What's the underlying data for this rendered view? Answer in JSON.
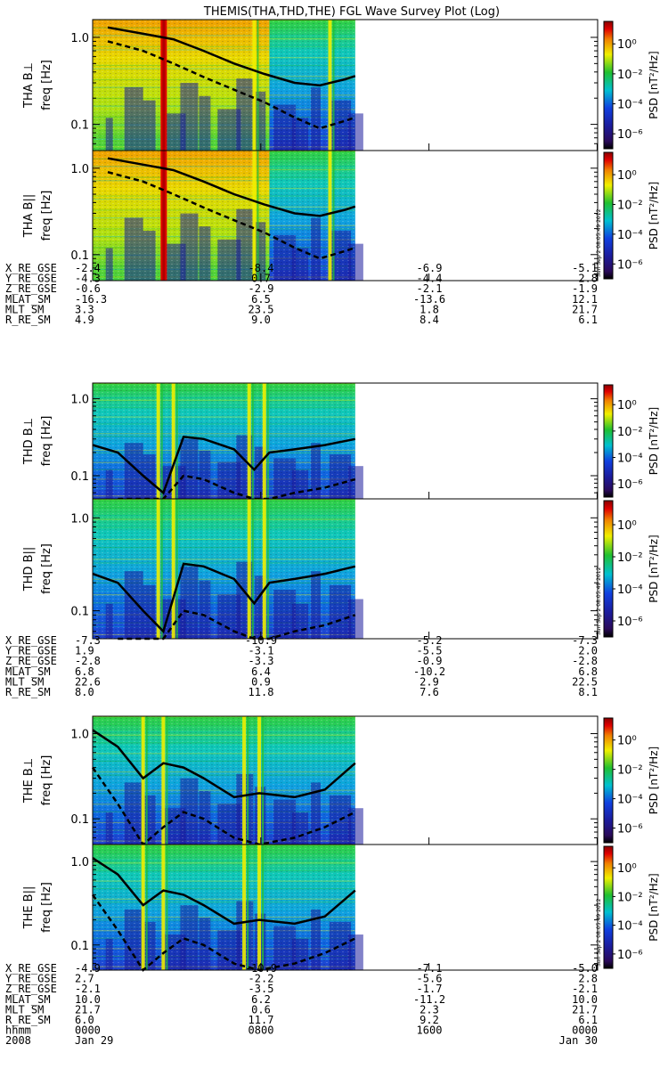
{
  "title": "THEMIS(THA,THD,THE) FGL Wave Survey Plot (Log)",
  "timestamp": "Sun Sep  2 08:05:49 2012",
  "colorbar_label": "PSD [nT²/Hz]",
  "colorbar_ticks": [
    "10⁰",
    "10⁻²",
    "10⁻⁴",
    "10⁻⁶"
  ],
  "colorbar_exponents": [
    0,
    -2,
    -4,
    -6
  ],
  "colors": {
    "dark_red": "#b00000",
    "red": "#e00000",
    "yellow": "#f0f000",
    "green": "#20c030",
    "cyan": "#00c0d0",
    "blue": "#1040e0",
    "dark_blue": "#1c1c9c",
    "black": "#000000",
    "grid_line": "#000000"
  },
  "chart_data": [
    {
      "type": "heatmap",
      "panel": "THA B⊥",
      "ylabel_probe": "THA B⊥",
      "ylabel": "freq [Hz]",
      "yscale": "log",
      "ylim": [
        0.05,
        1.6
      ],
      "yticks": [
        "1.0",
        "0.1"
      ],
      "data_end_fraction": 0.52,
      "bright_region_end_fraction": 0.35,
      "vertical_bursts": [
        0.14,
        0.32,
        0.47
      ],
      "solid_line": [
        [
          0.03,
          1.3
        ],
        [
          0.1,
          1.1
        ],
        [
          0.16,
          0.95
        ],
        [
          0.22,
          0.7
        ],
        [
          0.28,
          0.5
        ],
        [
          0.34,
          0.38
        ],
        [
          0.4,
          0.3
        ],
        [
          0.45,
          0.28
        ],
        [
          0.5,
          0.33
        ],
        [
          0.52,
          0.36
        ]
      ],
      "dashed_line": [
        [
          0.03,
          0.9
        ],
        [
          0.1,
          0.7
        ],
        [
          0.16,
          0.5
        ],
        [
          0.22,
          0.35
        ],
        [
          0.28,
          0.25
        ],
        [
          0.34,
          0.18
        ],
        [
          0.4,
          0.12
        ],
        [
          0.45,
          0.09
        ],
        [
          0.5,
          0.11
        ],
        [
          0.52,
          0.12
        ]
      ]
    },
    {
      "type": "heatmap",
      "panel": "THA B∥",
      "ylabel_probe": "THA B||",
      "ylabel": "freq [Hz]",
      "yscale": "log",
      "ylim": [
        0.05,
        1.6
      ],
      "yticks": [
        "1.0",
        "0.1"
      ],
      "data_end_fraction": 0.52,
      "bright_region_end_fraction": 0.35,
      "vertical_bursts": [
        0.14,
        0.32,
        0.47
      ],
      "solid_line": [
        [
          0.03,
          1.3
        ],
        [
          0.1,
          1.1
        ],
        [
          0.16,
          0.95
        ],
        [
          0.22,
          0.7
        ],
        [
          0.28,
          0.5
        ],
        [
          0.34,
          0.38
        ],
        [
          0.4,
          0.3
        ],
        [
          0.45,
          0.28
        ],
        [
          0.5,
          0.33
        ],
        [
          0.52,
          0.36
        ]
      ],
      "dashed_line": [
        [
          0.03,
          0.9
        ],
        [
          0.1,
          0.7
        ],
        [
          0.16,
          0.5
        ],
        [
          0.22,
          0.35
        ],
        [
          0.28,
          0.25
        ],
        [
          0.34,
          0.18
        ],
        [
          0.4,
          0.12
        ],
        [
          0.45,
          0.09
        ],
        [
          0.5,
          0.11
        ],
        [
          0.52,
          0.12
        ]
      ]
    },
    {
      "type": "heatmap",
      "panel": "THD B⊥",
      "ylabel_probe": "THD B⊥",
      "ylabel": "freq [Hz]",
      "yscale": "log",
      "ylim": [
        0.05,
        1.6
      ],
      "yticks": [
        "1.0",
        "0.1"
      ],
      "data_end_fraction": 0.52,
      "bright_region_end_fraction": 0.0,
      "vertical_bursts": [
        0.13,
        0.16,
        0.31,
        0.34
      ],
      "solid_line": [
        [
          0.0,
          0.25
        ],
        [
          0.05,
          0.2
        ],
        [
          0.1,
          0.1
        ],
        [
          0.14,
          0.06
        ],
        [
          0.18,
          0.32
        ],
        [
          0.22,
          0.3
        ],
        [
          0.28,
          0.22
        ],
        [
          0.32,
          0.12
        ],
        [
          0.35,
          0.2
        ],
        [
          0.4,
          0.22
        ],
        [
          0.46,
          0.25
        ],
        [
          0.52,
          0.3
        ]
      ],
      "dashed_line": [
        [
          0.05,
          0.05
        ],
        [
          0.1,
          0.04
        ],
        [
          0.14,
          0.05
        ],
        [
          0.18,
          0.1
        ],
        [
          0.22,
          0.09
        ],
        [
          0.28,
          0.06
        ],
        [
          0.32,
          0.04
        ],
        [
          0.35,
          0.05
        ],
        [
          0.4,
          0.06
        ],
        [
          0.46,
          0.07
        ],
        [
          0.52,
          0.09
        ]
      ]
    },
    {
      "type": "heatmap",
      "panel": "THD B∥",
      "ylabel_probe": "THD B||",
      "ylabel": "freq [Hz]",
      "yscale": "log",
      "ylim": [
        0.05,
        1.6
      ],
      "yticks": [
        "1.0",
        "0.1"
      ],
      "data_end_fraction": 0.52,
      "bright_region_end_fraction": 0.0,
      "vertical_bursts": [
        0.13,
        0.16,
        0.31,
        0.34
      ],
      "solid_line": [
        [
          0.0,
          0.25
        ],
        [
          0.05,
          0.2
        ],
        [
          0.1,
          0.1
        ],
        [
          0.14,
          0.06
        ],
        [
          0.18,
          0.32
        ],
        [
          0.22,
          0.3
        ],
        [
          0.28,
          0.22
        ],
        [
          0.32,
          0.12
        ],
        [
          0.35,
          0.2
        ],
        [
          0.4,
          0.22
        ],
        [
          0.46,
          0.25
        ],
        [
          0.52,
          0.3
        ]
      ],
      "dashed_line": [
        [
          0.05,
          0.05
        ],
        [
          0.1,
          0.04
        ],
        [
          0.14,
          0.05
        ],
        [
          0.18,
          0.1
        ],
        [
          0.22,
          0.09
        ],
        [
          0.28,
          0.06
        ],
        [
          0.32,
          0.04
        ],
        [
          0.35,
          0.05
        ],
        [
          0.4,
          0.06
        ],
        [
          0.46,
          0.07
        ],
        [
          0.52,
          0.09
        ]
      ]
    },
    {
      "type": "heatmap",
      "panel": "THE B⊥",
      "ylabel_probe": "THE B⊥",
      "ylabel": "freq [Hz]",
      "yscale": "log",
      "ylim": [
        0.05,
        1.6
      ],
      "yticks": [
        "1.0",
        "0.1"
      ],
      "data_end_fraction": 0.52,
      "bright_region_end_fraction": 0.0,
      "vertical_bursts": [
        0.1,
        0.14,
        0.3,
        0.33
      ],
      "solid_line": [
        [
          0.0,
          1.1
        ],
        [
          0.05,
          0.7
        ],
        [
          0.1,
          0.3
        ],
        [
          0.14,
          0.45
        ],
        [
          0.18,
          0.4
        ],
        [
          0.22,
          0.3
        ],
        [
          0.28,
          0.18
        ],
        [
          0.33,
          0.2
        ],
        [
          0.4,
          0.18
        ],
        [
          0.46,
          0.22
        ],
        [
          0.52,
          0.45
        ]
      ],
      "dashed_line": [
        [
          0.0,
          0.4
        ],
        [
          0.05,
          0.15
        ],
        [
          0.1,
          0.05
        ],
        [
          0.14,
          0.08
        ],
        [
          0.18,
          0.12
        ],
        [
          0.22,
          0.1
        ],
        [
          0.28,
          0.06
        ],
        [
          0.33,
          0.05
        ],
        [
          0.4,
          0.06
        ],
        [
          0.46,
          0.08
        ],
        [
          0.52,
          0.12
        ]
      ]
    },
    {
      "type": "heatmap",
      "panel": "THE B∥",
      "ylabel_probe": "THE B||",
      "ylabel": "freq [Hz]",
      "yscale": "log",
      "ylim": [
        0.05,
        1.6
      ],
      "yticks": [
        "1.0",
        "0.1"
      ],
      "data_end_fraction": 0.52,
      "bright_region_end_fraction": 0.0,
      "vertical_bursts": [
        0.1,
        0.14,
        0.3,
        0.33
      ],
      "solid_line": [
        [
          0.0,
          1.1
        ],
        [
          0.05,
          0.7
        ],
        [
          0.1,
          0.3
        ],
        [
          0.14,
          0.45
        ],
        [
          0.18,
          0.4
        ],
        [
          0.22,
          0.3
        ],
        [
          0.28,
          0.18
        ],
        [
          0.33,
          0.2
        ],
        [
          0.4,
          0.18
        ],
        [
          0.46,
          0.22
        ],
        [
          0.52,
          0.45
        ]
      ],
      "dashed_line": [
        [
          0.0,
          0.4
        ],
        [
          0.05,
          0.15
        ],
        [
          0.1,
          0.05
        ],
        [
          0.14,
          0.08
        ],
        [
          0.18,
          0.12
        ],
        [
          0.22,
          0.1
        ],
        [
          0.28,
          0.06
        ],
        [
          0.33,
          0.05
        ],
        [
          0.4,
          0.06
        ],
        [
          0.46,
          0.08
        ],
        [
          0.52,
          0.12
        ]
      ]
    }
  ],
  "ephemeris_blocks": [
    {
      "probe": "THA",
      "rows": [
        {
          "label": "X_RE_GSE",
          "values": [
            "-2.4",
            "-8.4",
            "-6.9",
            "-5.1"
          ]
        },
        {
          "label": "Y_RE_GSE",
          "values": [
            "-4.3",
            "0.7",
            "-4.4",
            "2.8"
          ]
        },
        {
          "label": "Z_RE_GSE",
          "values": [
            "-0.6",
            "-2.9",
            "-2.1",
            "-1.9"
          ]
        },
        {
          "label": "MLAT_SM",
          "values": [
            "-16.3",
            "6.5",
            "-13.6",
            "12.1"
          ]
        },
        {
          "label": "MLT_SM",
          "values": [
            "3.3",
            "23.5",
            "1.8",
            "21.7"
          ]
        },
        {
          "label": "R_RE_SM",
          "values": [
            "4.9",
            "9.0",
            "8.4",
            "6.1"
          ]
        }
      ]
    },
    {
      "probe": "THD",
      "rows": [
        {
          "label": "X_RE_GSE",
          "values": [
            "-7.3",
            "-10.9",
            "-5.2",
            "-7.3"
          ]
        },
        {
          "label": "Y_RE_GSE",
          "values": [
            "1.9",
            "-3.1",
            "-5.5",
            "2.0"
          ]
        },
        {
          "label": "Z_RE_GSE",
          "values": [
            "-2.8",
            "-3.3",
            "-0.9",
            "-2.8"
          ]
        },
        {
          "label": "MLAT_SM",
          "values": [
            "6.8",
            "6.4",
            "-10.2",
            "6.8"
          ]
        },
        {
          "label": "MLT_SM",
          "values": [
            "22.6",
            "0.9",
            "2.9",
            "22.5"
          ]
        },
        {
          "label": "R_RE_SM",
          "values": [
            "8.0",
            "11.8",
            "7.6",
            "8.1"
          ]
        }
      ]
    },
    {
      "probe": "THE",
      "rows": [
        {
          "label": "X_RE_GSE",
          "values": [
            "-4.9",
            "-10.9",
            "-7.1",
            "-5.0"
          ]
        },
        {
          "label": "Y_RE_GSE",
          "values": [
            "2.7",
            "-2.2",
            "-5.6",
            "2.8"
          ]
        },
        {
          "label": "Z_RE_GSE",
          "values": [
            "-2.1",
            "-3.5",
            "-1.7",
            "-2.1"
          ]
        },
        {
          "label": "MLAT_SM",
          "values": [
            "10.0",
            "6.2",
            "-11.2",
            "10.0"
          ]
        },
        {
          "label": "MLT_SM",
          "values": [
            "21.7",
            "0.6",
            "2.3",
            "21.7"
          ]
        },
        {
          "label": "R_RE_SM",
          "values": [
            "6.0",
            "11.7",
            "9.2",
            "6.1"
          ]
        },
        {
          "label": "hhmm",
          "values": [
            "0000",
            "0800",
            "1600",
            "0000"
          ]
        }
      ]
    }
  ],
  "date_row": {
    "year": "2008",
    "start": "Jan 29",
    "end": "Jan 30"
  }
}
